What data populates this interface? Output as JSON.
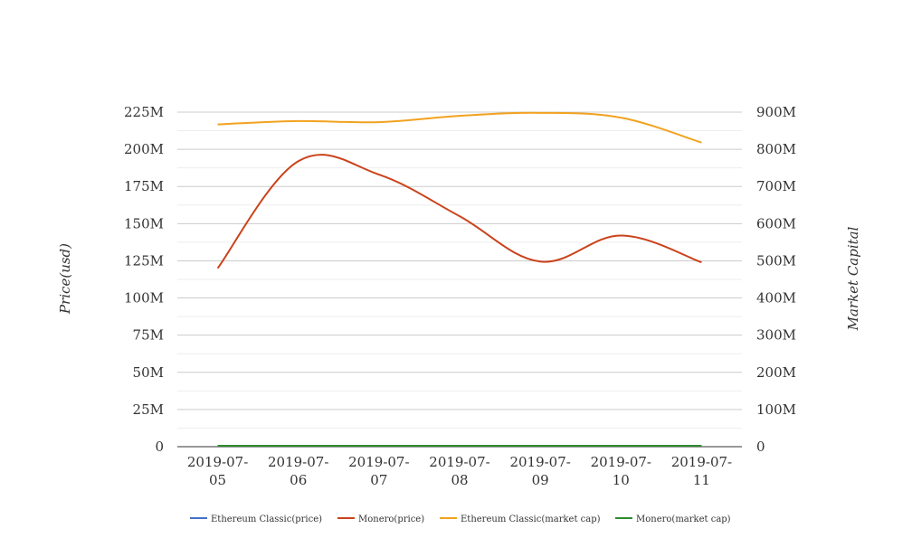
{
  "chart_data": {
    "type": "line",
    "categories": [
      "2019-07-05",
      "2019-07-06",
      "2019-07-07",
      "2019-07-08",
      "2019-07-09",
      "2019-07-10",
      "2019-07-11"
    ],
    "x_tick_lines": [
      [
        "2019-07-",
        "05"
      ],
      [
        "2019-07-",
        "06"
      ],
      [
        "2019-07-",
        "07"
      ],
      [
        "2019-07-",
        "08"
      ],
      [
        "2019-07-",
        "09"
      ],
      [
        "2019-07-",
        "10"
      ],
      [
        "2019-07-",
        "11"
      ]
    ],
    "ylabel_left": "Price(usd)",
    "ylabel_right": "Market Capital",
    "ylim_left": [
      0,
      225000000
    ],
    "ylim_right": [
      0,
      900000000
    ],
    "left_ticks": [
      "0",
      "25M",
      "50M",
      "75M",
      "100M",
      "125M",
      "150M",
      "175M",
      "200M",
      "225M"
    ],
    "right_ticks": [
      "0",
      "100M",
      "200M",
      "300M",
      "400M",
      "500M",
      "600M",
      "700M",
      "800M",
      "900M"
    ],
    "grid": true,
    "legend_position": "bottom",
    "series": [
      {
        "name": "Ethereum Classic(price)",
        "axis": "left",
        "color": "#4472c4",
        "values": [
          7,
          7,
          7,
          7,
          7,
          7,
          7
        ]
      },
      {
        "name": "Monero(price)",
        "axis": "left",
        "color": "#c9431b",
        "values": [
          120000000,
          192000000,
          183000000,
          155000000,
          124500000,
          142000000,
          124000000
        ]
      },
      {
        "name": "Ethereum Classic(market cap)",
        "axis": "right",
        "color": "#f2a21f",
        "values": [
          867000000,
          876000000,
          873000000,
          890000000,
          898000000,
          885000000,
          818000000
        ]
      },
      {
        "name": "Monero(market cap)",
        "axis": "right",
        "color": "#2e8b2e",
        "values": [
          1500000,
          1500000,
          1500000,
          1500000,
          1500000,
          1500000,
          1500000
        ]
      }
    ]
  }
}
